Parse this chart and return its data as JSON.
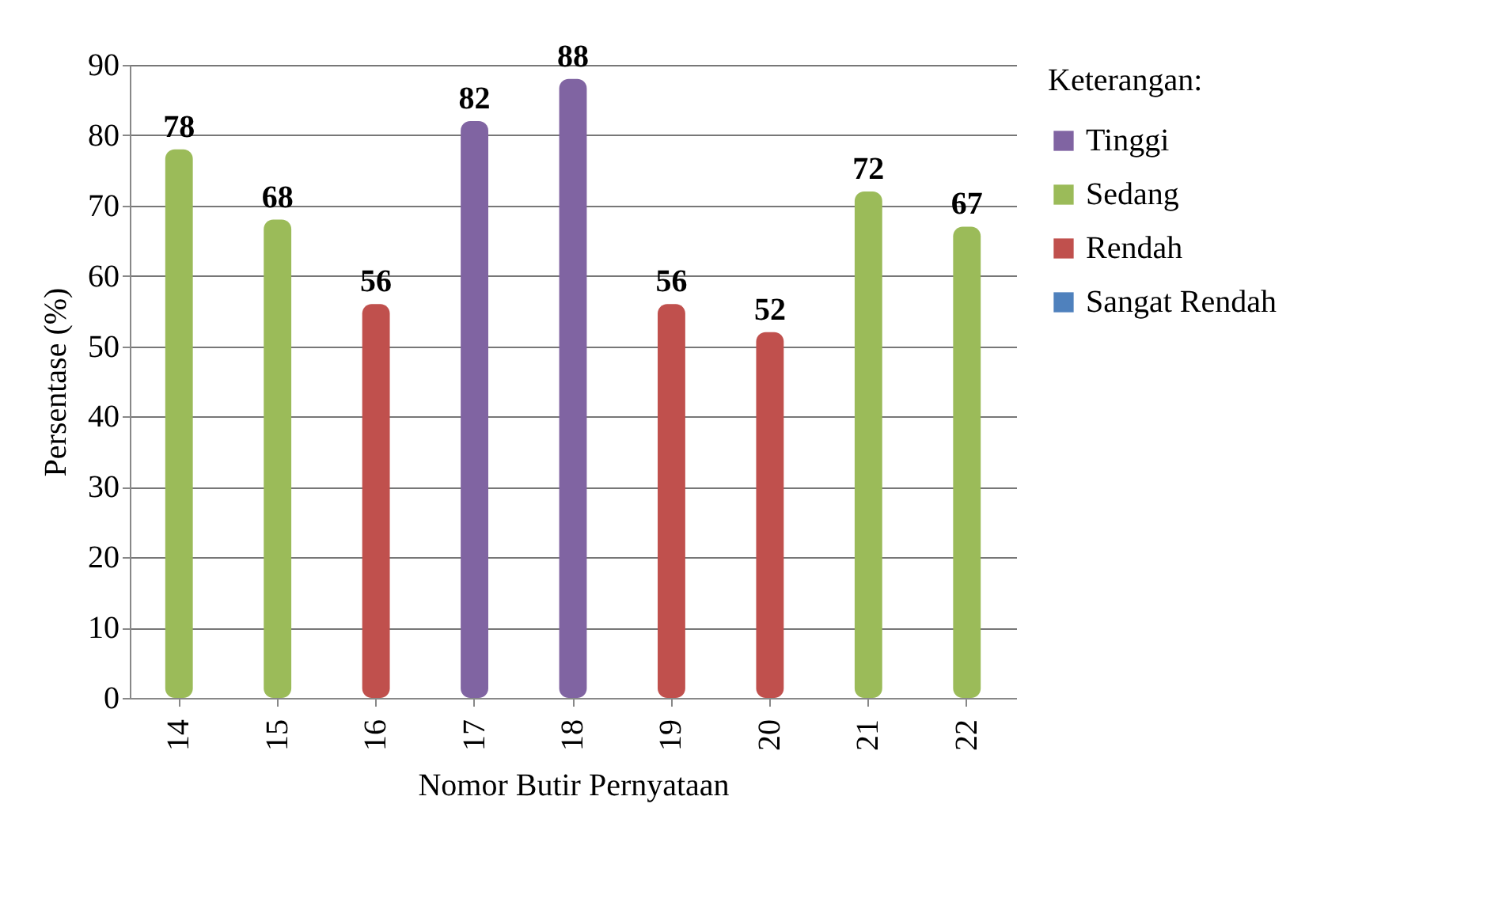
{
  "chart_data": {
    "type": "bar",
    "xlabel": "Nomor Butir Pernyataan",
    "ylabel": "Persentase (%)",
    "legend_title": "Keterangan:",
    "categories": [
      "14",
      "15",
      "16",
      "17",
      "18",
      "19",
      "20",
      "21",
      "22"
    ],
    "series": [
      {
        "name": "Tinggi",
        "color": "#8064a2",
        "values": [
          null,
          null,
          null,
          82,
          88,
          null,
          null,
          null,
          null
        ]
      },
      {
        "name": "Sedang",
        "color": "#9bbb59",
        "values": [
          78,
          68,
          null,
          null,
          null,
          null,
          null,
          72,
          67
        ]
      },
      {
        "name": "Rendah",
        "color": "#c0504d",
        "values": [
          null,
          null,
          56,
          null,
          null,
          56,
          52,
          null,
          null
        ]
      },
      {
        "name": "Sangat Rendah",
        "color": "#4f81bd",
        "values": [
          null,
          null,
          null,
          null,
          null,
          null,
          null,
          null,
          null
        ]
      }
    ],
    "ylim": [
      0,
      90
    ],
    "yticks": [
      0,
      10,
      20,
      30,
      40,
      50,
      60,
      70,
      80,
      90
    ],
    "grid": "y",
    "legend": "right",
    "data_labels": true
  }
}
